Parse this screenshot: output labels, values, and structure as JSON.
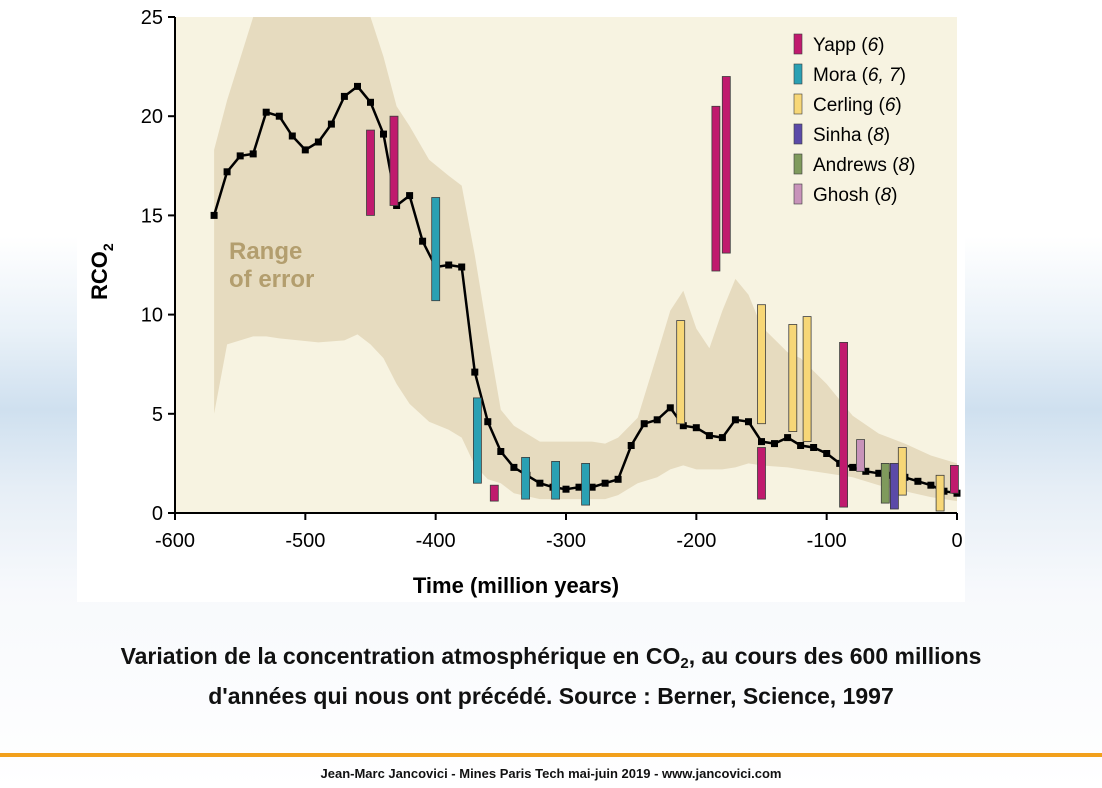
{
  "chart_data": {
    "type": "line",
    "xlabel": "Time (million years)",
    "ylabel": "RCO",
    "ylabel_subscript": "2",
    "xlim": [
      -600,
      0
    ],
    "ylim": [
      0,
      25
    ],
    "x_ticks": [
      -600,
      -500,
      -400,
      -300,
      -200,
      -100,
      0
    ],
    "x_tick_labels": [
      "-600",
      "-500",
      "-400",
      "-300",
      "-200",
      "-100",
      "0"
    ],
    "y_ticks": [
      0,
      5,
      10,
      15,
      20,
      25
    ],
    "y_tick_labels": [
      "0",
      "5",
      "10",
      "15",
      "20",
      "25"
    ],
    "error_band_label": [
      "Range",
      "of error"
    ],
    "main_series": {
      "name": "RCO2",
      "x": [
        -570,
        -560,
        -550,
        -540,
        -530,
        -520,
        -510,
        -500,
        -490,
        -480,
        -470,
        -460,
        -450,
        -440,
        -430,
        -420,
        -410,
        -400,
        -390,
        -380,
        -370,
        -360,
        -350,
        -340,
        -330,
        -320,
        -310,
        -300,
        -290,
        -280,
        -270,
        -260,
        -250,
        -240,
        -230,
        -220,
        -210,
        -200,
        -190,
        -180,
        -170,
        -160,
        -150,
        -140,
        -130,
        -120,
        -110,
        -100,
        -90,
        -80,
        -70,
        -60,
        -50,
        -40,
        -30,
        -20,
        -10,
        0
      ],
      "y": [
        15,
        17.2,
        18,
        18.1,
        20.2,
        20,
        19,
        18.3,
        18.7,
        19.6,
        21,
        21.5,
        20.7,
        19.1,
        15.5,
        16,
        13.7,
        12.4,
        12.5,
        12.4,
        7.1,
        4.6,
        3.1,
        2.3,
        1.9,
        1.5,
        1.3,
        1.2,
        1.3,
        1.3,
        1.5,
        1.7,
        3.4,
        4.5,
        4.7,
        5.3,
        4.4,
        4.3,
        3.9,
        3.8,
        4.7,
        4.6,
        3.6,
        3.5,
        3.8,
        3.4,
        3.3,
        3,
        2.5,
        2.3,
        2.1,
        2,
        1.9,
        1.8,
        1.6,
        1.4,
        1.1,
        1
      ]
    },
    "error_band": {
      "x": [
        -570,
        -560,
        -540,
        -530,
        -520,
        -490,
        -470,
        -460,
        -450,
        -440,
        -430,
        -420,
        -405,
        -390,
        -380,
        -370,
        -360,
        -350,
        -340,
        -320,
        -300,
        -280,
        -270,
        -260,
        -245,
        -230,
        -220,
        -210,
        -200,
        -190,
        -180,
        -170,
        -160,
        -150,
        -130,
        -120,
        -100,
        -80,
        -60,
        -40,
        -20,
        0
      ],
      "upper": [
        18.3,
        20.8,
        25,
        25,
        25,
        25,
        25,
        25,
        25,
        23,
        20.5,
        19.5,
        17.8,
        17,
        16.5,
        13,
        9,
        5.2,
        4.4,
        3.6,
        3.6,
        3.6,
        3.5,
        3.8,
        4.8,
        8,
        10.2,
        11.2,
        9.3,
        8.3,
        10.2,
        11.8,
        11,
        9.4,
        8.1,
        7.8,
        6.5,
        4.9,
        4,
        3.5,
        2.9,
        2.5
      ],
      "lower": [
        5,
        8.5,
        8.9,
        8.9,
        8.8,
        8.6,
        8.7,
        9,
        8.5,
        7.8,
        6.5,
        5.5,
        4.6,
        4.2,
        3.8,
        2.4,
        1.7,
        1.5,
        1,
        0.7,
        0.7,
        0.7,
        0.7,
        0.9,
        1.5,
        1.8,
        2.2,
        2.4,
        2.2,
        2.2,
        2.2,
        2.3,
        2.5,
        2.4,
        2.3,
        2.2,
        2,
        1.8,
        1.4,
        1.1,
        0.8,
        0.6
      ]
    },
    "proxy_series": [
      {
        "name": "Yapp",
        "ref": "6",
        "color": "#c01a6e",
        "bars": [
          {
            "x": -450,
            "low": 15,
            "high": 19.3
          },
          {
            "x": -432,
            "low": 15.5,
            "high": 20
          },
          {
            "x": -355,
            "low": 0.6,
            "high": 1.4
          },
          {
            "x": -185,
            "low": 12.2,
            "high": 20.5
          },
          {
            "x": -177,
            "low": 13.1,
            "high": 22
          },
          {
            "x": -150,
            "low": 0.7,
            "high": 3.3
          },
          {
            "x": -87,
            "low": 0.3,
            "high": 8.6
          },
          {
            "x": -2,
            "low": 1,
            "high": 2.4
          }
        ]
      },
      {
        "name": "Mora",
        "ref": "6, 7",
        "color": "#2aa0b3",
        "bars": [
          {
            "x": -400,
            "low": 10.7,
            "high": 15.9
          },
          {
            "x": -368,
            "low": 1.5,
            "high": 5.8
          },
          {
            "x": -331,
            "low": 0.7,
            "high": 2.8
          },
          {
            "x": -308,
            "low": 0.7,
            "high": 2.6
          },
          {
            "x": -285,
            "low": 0.4,
            "high": 2.5
          }
        ]
      },
      {
        "name": "Cerling",
        "ref": "6",
        "color": "#f7d777",
        "bars": [
          {
            "x": -212,
            "low": 4.5,
            "high": 9.7
          },
          {
            "x": -150,
            "low": 4.5,
            "high": 10.5
          },
          {
            "x": -126,
            "low": 4.1,
            "high": 9.5
          },
          {
            "x": -115,
            "low": 3.6,
            "high": 9.9
          },
          {
            "x": -42,
            "low": 0.9,
            "high": 3.3
          },
          {
            "x": -13,
            "low": 0.1,
            "high": 1.9
          }
        ]
      },
      {
        "name": "Sinha",
        "ref": "8",
        "color": "#5b4aa8",
        "bars": [
          {
            "x": -48,
            "low": 0.2,
            "high": 2.5
          }
        ]
      },
      {
        "name": "Andrews",
        "ref": "8",
        "color": "#7f9a5c",
        "bars": [
          {
            "x": -55,
            "low": 0.5,
            "high": 2.5
          }
        ]
      },
      {
        "name": "Ghosh",
        "ref": "8",
        "color": "#c893ba",
        "bars": [
          {
            "x": -74,
            "low": 2.1,
            "high": 3.7
          }
        ]
      }
    ]
  },
  "caption": {
    "line1_before_sub": "Variation de la concentration atmosphérique en CO",
    "line1_sub": "2",
    "line1_after_sub": ", au cours des 600 millions",
    "line2": "d'années qui nous ont précédé. Source : Berner, Science, 1997"
  },
  "footer": "Jean-Marc Jancovici - Mines Paris Tech mai-juin 2019 - www.jancovici.com",
  "colors": {
    "plot_background": "#f7f3e1",
    "error_band": "#e6dbbf",
    "error_label": "#b39e6e",
    "line": "#000000",
    "footer_rule": "#f2a01c"
  }
}
